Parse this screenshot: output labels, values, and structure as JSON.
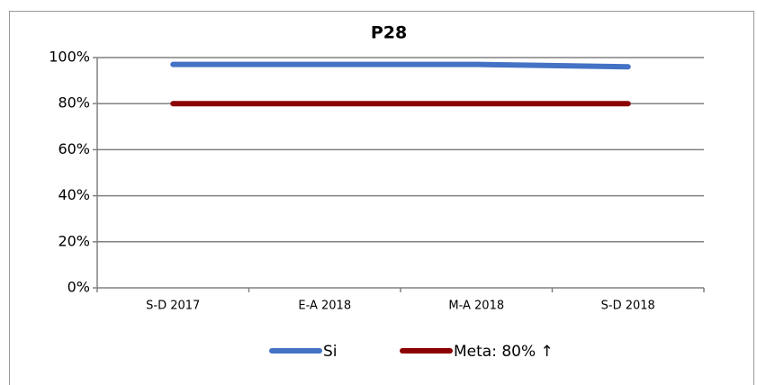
{
  "chart_data": {
    "type": "line",
    "title": "P28",
    "categories": [
      "S-D 2017",
      "E-A 2018",
      "M-A 2018",
      "S-D 2018"
    ],
    "series": [
      {
        "name": "Si",
        "color": "#4472c4",
        "values": [
          97,
          97,
          97,
          96
        ]
      },
      {
        "name": "Meta: 80% ↑",
        "color": "#8b0000",
        "values": [
          80,
          80,
          80,
          80
        ]
      }
    ],
    "ylim": [
      0,
      100
    ],
    "yticks": [
      {
        "value": 0,
        "label": "0%"
      },
      {
        "value": 20,
        "label": "20%"
      },
      {
        "value": 40,
        "label": "40%"
      },
      {
        "value": 60,
        "label": "60%"
      },
      {
        "value": 80,
        "label": "80%"
      },
      {
        "value": 100,
        "label": "100%"
      }
    ],
    "grid": true,
    "legend": "bottom"
  }
}
